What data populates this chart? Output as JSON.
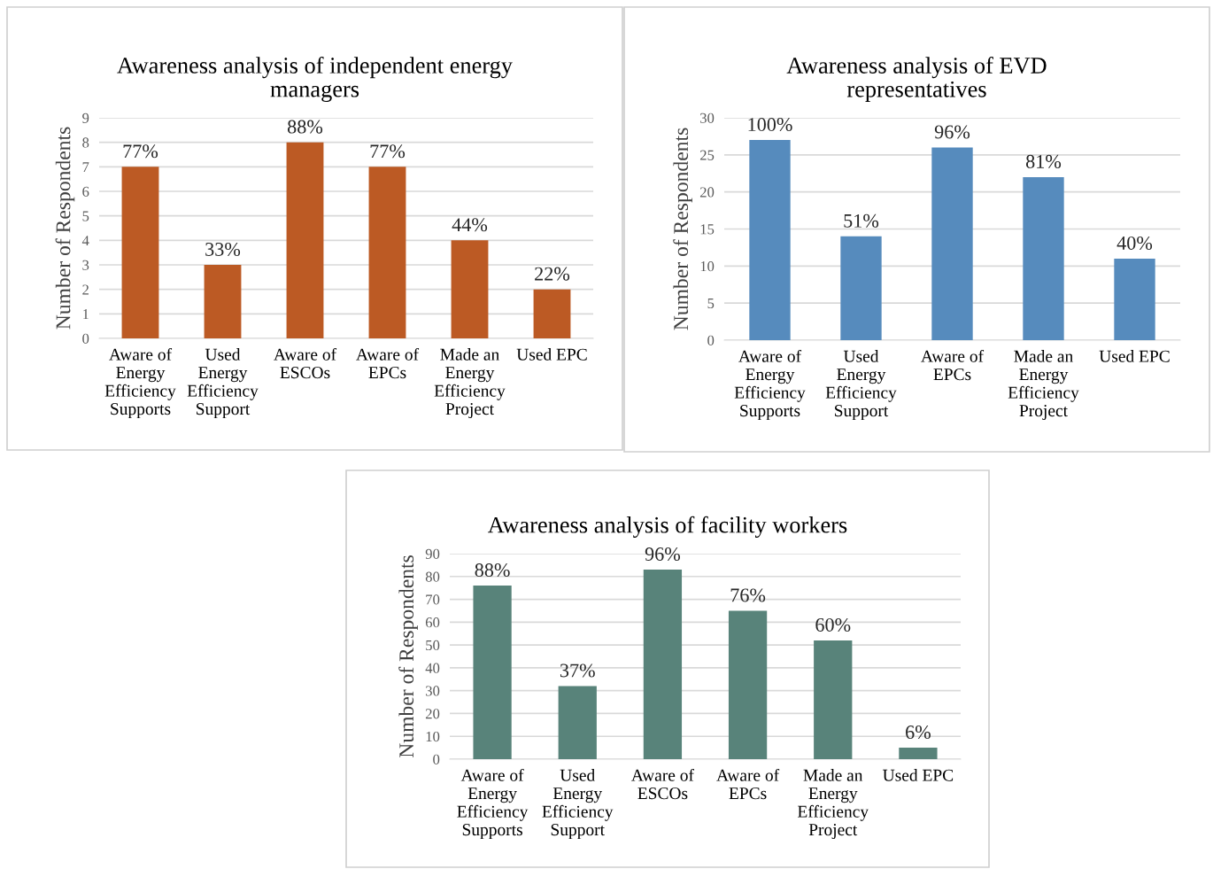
{
  "chart_data": [
    {
      "type": "bar",
      "title": "Awareness analysis of independent energy managers",
      "ylabel": "Number of Respondents",
      "categories": [
        "Aware of Energy Efficiency Supports",
        "Used Energy Efficiency Support",
        "Aware of ESCOs",
        "Aware of EPCs",
        "Made an Energy Efficiency Project",
        "Used EPC"
      ],
      "series": [
        {
          "color": "#bc5a24",
          "values": [
            7,
            3,
            8,
            7,
            4,
            2
          ]
        }
      ],
      "annotations": [
        {
          "text": "77%",
          "x": "Aware of Energy Efficiency Supports",
          "y": 7
        },
        {
          "text": "33%",
          "x": "Used Energy Efficiency Support",
          "y": 3
        },
        {
          "text": "88%",
          "x": "Aware of ESCOs",
          "y": 8
        },
        {
          "text": "77%",
          "x": "Aware of EPCs",
          "y": 7
        },
        {
          "text": "44%",
          "x": "Made an Energy Efficiency Project",
          "y": 4
        },
        {
          "text": "22%",
          "x": "Used EPC",
          "y": 2
        }
      ],
      "ylim": [
        0,
        9
      ],
      "yticks": [
        0,
        1,
        2,
        3,
        4,
        5,
        6,
        7,
        8,
        9
      ],
      "grid": "y"
    },
    {
      "type": "bar",
      "title": "Awareness analysis of EVD representatives",
      "ylabel": "Number of Respondents",
      "categories": [
        "Aware of Energy Efficiency Supports",
        "Used Energy Efficiency Support",
        "Aware of EPCs",
        "Made an Energy Efficiency Project",
        "Used EPC"
      ],
      "series": [
        {
          "color": "#568bbd",
          "values": [
            27,
            14,
            26,
            22,
            11
          ]
        }
      ],
      "annotations": [
        {
          "text": "100%",
          "x": "Aware of Energy Efficiency Supports",
          "y": 27
        },
        {
          "text": "51%",
          "x": "Used Energy Efficiency Support",
          "y": 14
        },
        {
          "text": "96%",
          "x": "Aware of EPCs",
          "y": 26
        },
        {
          "text": "81%",
          "x": "Made an Energy Efficiency Project",
          "y": 22
        },
        {
          "text": "40%",
          "x": "Used EPC",
          "y": 11
        }
      ],
      "ylim": [
        0,
        30
      ],
      "yticks": [
        0,
        5,
        10,
        15,
        20,
        25,
        30
      ],
      "grid": "y"
    },
    {
      "type": "bar",
      "title": "Awareness analysis of facility workers",
      "ylabel": "Number of Respondents",
      "categories": [
        "Aware of Energy Efficiency Supports",
        "Used Energy Efficiency Support",
        "Aware of ESCOs",
        "Aware of EPCs",
        "Made an Energy Efficiency Project",
        "Used EPC"
      ],
      "series": [
        {
          "color": "#58837a",
          "values": [
            76,
            32,
            83,
            65,
            52,
            5
          ]
        }
      ],
      "annotations": [
        {
          "text": "88%",
          "x": "Aware of Energy Efficiency Supports",
          "y": 76
        },
        {
          "text": "37%",
          "x": "Used Energy Efficiency Support",
          "y": 32
        },
        {
          "text": "96%",
          "x": "Aware of ESCOs",
          "y": 83
        },
        {
          "text": "76%",
          "x": "Aware of EPCs",
          "y": 65
        },
        {
          "text": "60%",
          "x": "Made an Energy Efficiency Project",
          "y": 52
        },
        {
          "text": "6%",
          "x": "Used EPC",
          "y": 5
        }
      ],
      "ylim": [
        0,
        90
      ],
      "yticks": [
        0,
        10,
        20,
        30,
        40,
        50,
        60,
        70,
        80,
        90
      ],
      "grid": "y"
    }
  ]
}
